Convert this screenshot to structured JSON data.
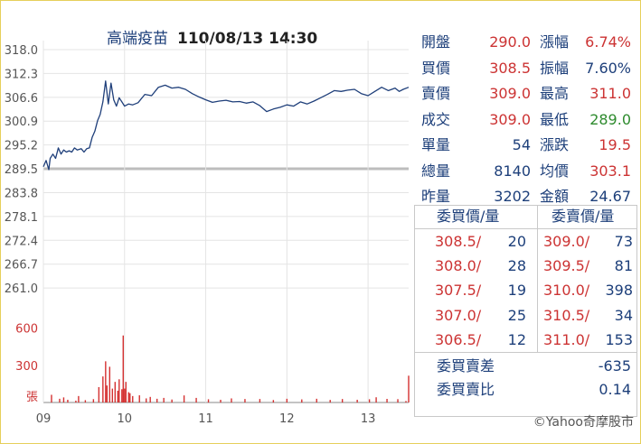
{
  "title": {
    "stock": "高端疫苗",
    "datetime": "110/08/13 14:30"
  },
  "quote": [
    {
      "l1": "開盤",
      "v1": "290.0",
      "c1": "red",
      "l2": "漲幅",
      "v2": "6.74%",
      "c2": "red"
    },
    {
      "l1": "買價",
      "v1": "308.5",
      "c1": "red",
      "l2": "振幅",
      "v2": "7.60%",
      "c2": "navy"
    },
    {
      "l1": "賣價",
      "v1": "309.0",
      "c1": "red",
      "l2": "最高",
      "v2": "311.0",
      "c2": "red"
    },
    {
      "l1": "成交",
      "v1": "309.0",
      "c1": "red",
      "l2": "最低",
      "v2": "289.0",
      "c2": "green"
    },
    {
      "l1": "單量",
      "v1": "54",
      "c1": "navy",
      "l2": "漲跌",
      "v2": "19.5",
      "c2": "red"
    },
    {
      "l1": "總量",
      "v1": "8140",
      "c1": "navy",
      "l2": "均價",
      "v2": "303.1",
      "c2": "red"
    },
    {
      "l1": "昨量",
      "v1": "3202",
      "c1": "navy",
      "l2": "金額",
      "v2": "24.67",
      "c2": "navy"
    }
  ],
  "order_book": {
    "bid_header": "委買價/量",
    "ask_header": "委賣價/量",
    "rows": [
      {
        "bid_price": "308.5/",
        "bid_vol": "20",
        "ask_price": "309.0/",
        "ask_vol": "73"
      },
      {
        "bid_price": "308.0/",
        "bid_vol": "28",
        "ask_price": "309.5/",
        "ask_vol": "81"
      },
      {
        "bid_price": "307.5/",
        "bid_vol": "19",
        "ask_price": "310.0/",
        "ask_vol": "398"
      },
      {
        "bid_price": "307.0/",
        "bid_vol": "25",
        "ask_price": "310.5/",
        "ask_vol": "34"
      },
      {
        "bid_price": "306.5/",
        "bid_vol": "12",
        "ask_price": "311.0/",
        "ask_vol": "153"
      }
    ],
    "diff_label": "委買賣差",
    "diff_value": "-635",
    "ratio_label": "委買賣比",
    "ratio_value": "0.14"
  },
  "credit": "©Yahoo奇摩股市",
  "colors": {
    "price_line": "#1f3f7a",
    "volume_bar": "#d43030",
    "ref_line": "#bdbdbd",
    "up": "#cc3333",
    "down": "#2e8b2e",
    "label": "#1d3f7a"
  },
  "chart_data": {
    "type": "line",
    "reference_price": 289.5,
    "price_ylim": [
      255.2,
      318.0
    ],
    "price_ticks": [
      "318.0",
      "312.3",
      "306.6",
      "300.9",
      "295.2",
      "289.5",
      "283.8",
      "278.1",
      "272.4",
      "266.7",
      "261.0"
    ],
    "x_ticks": [
      "09",
      "10",
      "11",
      "12",
      "13"
    ],
    "xlim_minutes": [
      0,
      270
    ],
    "price_series": {
      "x": [
        0,
        2,
        4,
        5,
        7,
        9,
        11,
        13,
        15,
        17,
        19,
        21,
        23,
        25,
        28,
        30,
        32,
        34,
        36,
        38,
        40,
        42,
        44,
        46,
        48,
        50,
        52,
        54,
        56,
        58,
        60,
        63,
        66,
        70,
        75,
        80,
        85,
        90,
        95,
        100,
        105,
        110,
        115,
        120,
        125,
        130,
        135,
        140,
        145,
        150,
        155,
        160,
        165,
        170,
        175,
        180,
        185,
        190,
        195,
        200,
        205,
        210,
        215,
        220,
        225,
        230,
        235,
        240,
        245,
        250,
        255,
        260,
        263,
        266,
        270
      ],
      "y": [
        290.0,
        291.5,
        289.3,
        292.0,
        293.0,
        292.0,
        294.5,
        293.0,
        294.0,
        293.5,
        293.8,
        293.5,
        294.5,
        294.0,
        294.3,
        293.5,
        294.3,
        294.5,
        297.0,
        298.5,
        301.0,
        302.5,
        305.5,
        310.5,
        305.0,
        310.0,
        306.0,
        304.5,
        306.5,
        305.5,
        304.5,
        305.0,
        304.8,
        305.3,
        307.3,
        307.0,
        309.0,
        309.5,
        308.8,
        309.0,
        308.5,
        307.5,
        306.7,
        306.0,
        305.4,
        305.7,
        305.9,
        305.5,
        305.6,
        305.2,
        305.5,
        304.6,
        303.2,
        303.8,
        304.2,
        304.8,
        304.5,
        305.5,
        305.0,
        305.7,
        306.5,
        307.3,
        308.2,
        308.0,
        308.3,
        308.5,
        307.5,
        307.0,
        308.0,
        309.0,
        308.2,
        308.8,
        308.0,
        308.5,
        309.0
      ]
    },
    "volume_ticks": [
      "600",
      "300",
      "張"
    ],
    "volume_ylim": [
      0,
      640
    ],
    "volume_bars": [
      {
        "x": 6,
        "v": 62
      },
      {
        "x": 12,
        "v": 30
      },
      {
        "x": 15,
        "v": 41
      },
      {
        "x": 18,
        "v": 22
      },
      {
        "x": 24,
        "v": 15
      },
      {
        "x": 26,
        "v": 52
      },
      {
        "x": 31,
        "v": 19
      },
      {
        "x": 37,
        "v": 27
      },
      {
        "x": 41,
        "v": 124
      },
      {
        "x": 44,
        "v": 210
      },
      {
        "x": 46,
        "v": 332
      },
      {
        "x": 47,
        "v": 137
      },
      {
        "x": 49,
        "v": 288
      },
      {
        "x": 51,
        "v": 112
      },
      {
        "x": 53,
        "v": 166
      },
      {
        "x": 55,
        "v": 95
      },
      {
        "x": 56,
        "v": 187
      },
      {
        "x": 58,
        "v": 107
      },
      {
        "x": 59,
        "v": 540
      },
      {
        "x": 60,
        "v": 112
      },
      {
        "x": 61,
        "v": 166
      },
      {
        "x": 63,
        "v": 83
      },
      {
        "x": 64,
        "v": 75
      },
      {
        "x": 66,
        "v": 52
      },
      {
        "x": 71,
        "v": 58
      },
      {
        "x": 76,
        "v": 33
      },
      {
        "x": 79,
        "v": 45
      },
      {
        "x": 84,
        "v": 30
      },
      {
        "x": 89,
        "v": 37
      },
      {
        "x": 95,
        "v": 24
      },
      {
        "x": 104,
        "v": 57
      },
      {
        "x": 113,
        "v": 37
      },
      {
        "x": 122,
        "v": 26
      },
      {
        "x": 131,
        "v": 22
      },
      {
        "x": 139,
        "v": 33
      },
      {
        "x": 149,
        "v": 28
      },
      {
        "x": 160,
        "v": 28
      },
      {
        "x": 170,
        "v": 20
      },
      {
        "x": 180,
        "v": 30
      },
      {
        "x": 191,
        "v": 25
      },
      {
        "x": 202,
        "v": 30
      },
      {
        "x": 212,
        "v": 21
      },
      {
        "x": 221,
        "v": 28
      },
      {
        "x": 232,
        "v": 22
      },
      {
        "x": 241,
        "v": 26
      },
      {
        "x": 246,
        "v": 42
      },
      {
        "x": 254,
        "v": 29
      },
      {
        "x": 262,
        "v": 27
      },
      {
        "x": 268,
        "v": 12
      },
      {
        "x": 270,
        "v": 216
      }
    ]
  }
}
